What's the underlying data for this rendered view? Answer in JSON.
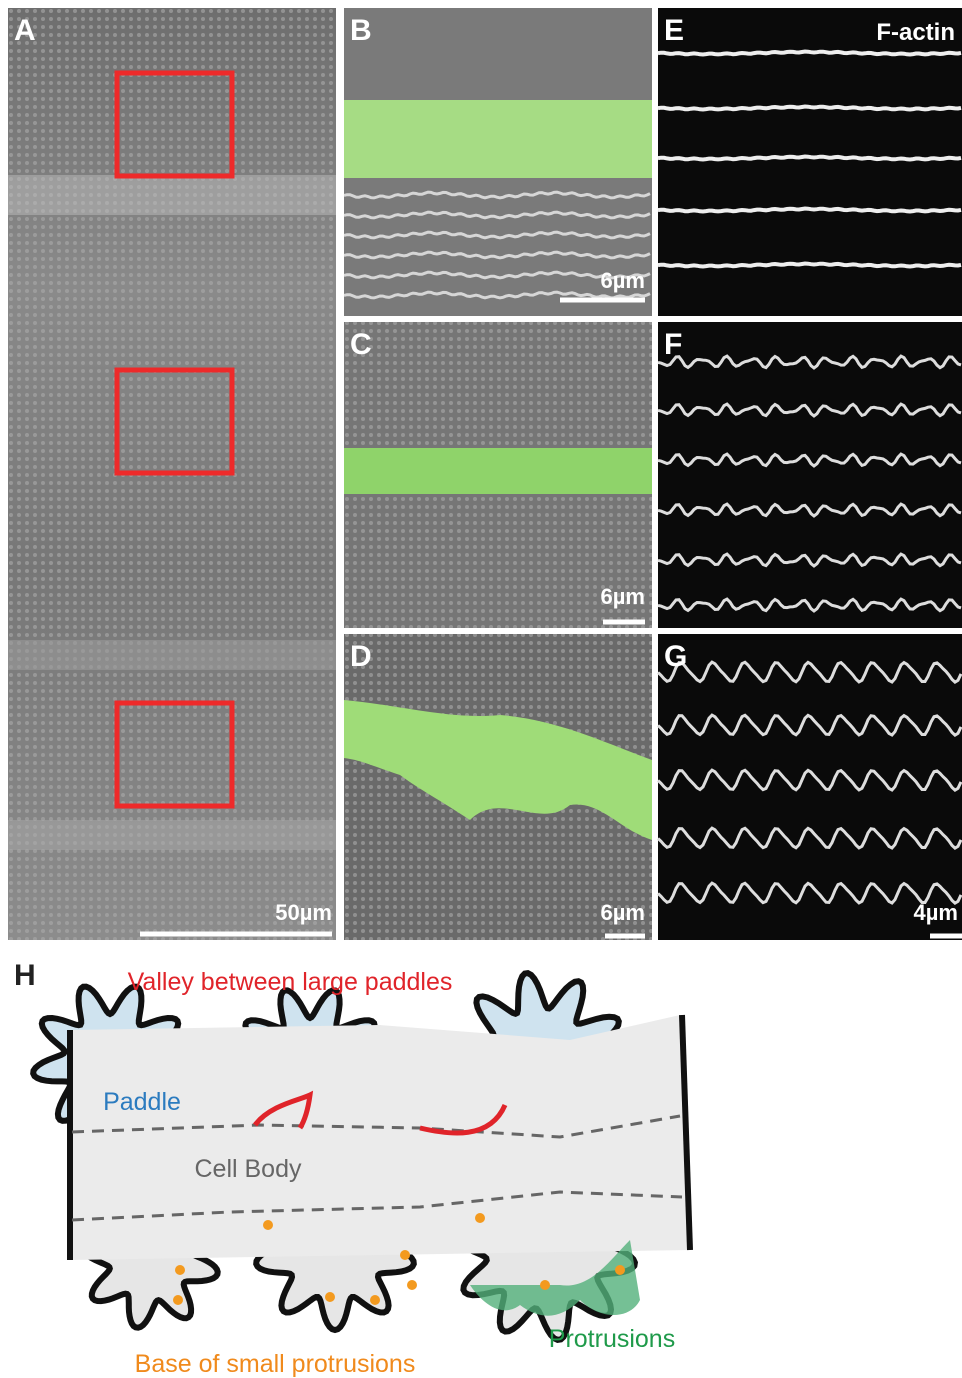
{
  "panels": [
    {
      "label": "A",
      "scale": "50µm"
    },
    {
      "label": "B",
      "scale": "6µm"
    },
    {
      "label": "C",
      "scale": "6µm"
    },
    {
      "label": "D",
      "scale": "6µm"
    },
    {
      "label": "E",
      "caption": "F-actin"
    },
    {
      "label": "F"
    },
    {
      "label": "G",
      "scale": "4µm"
    }
  ],
  "diagram": {
    "label": "H",
    "valley": "Valley between large paddles",
    "paddle": "Paddle",
    "cell_body": "Cell Body",
    "protrusions": "Protrusions",
    "base": "Base of small protrusions"
  }
}
